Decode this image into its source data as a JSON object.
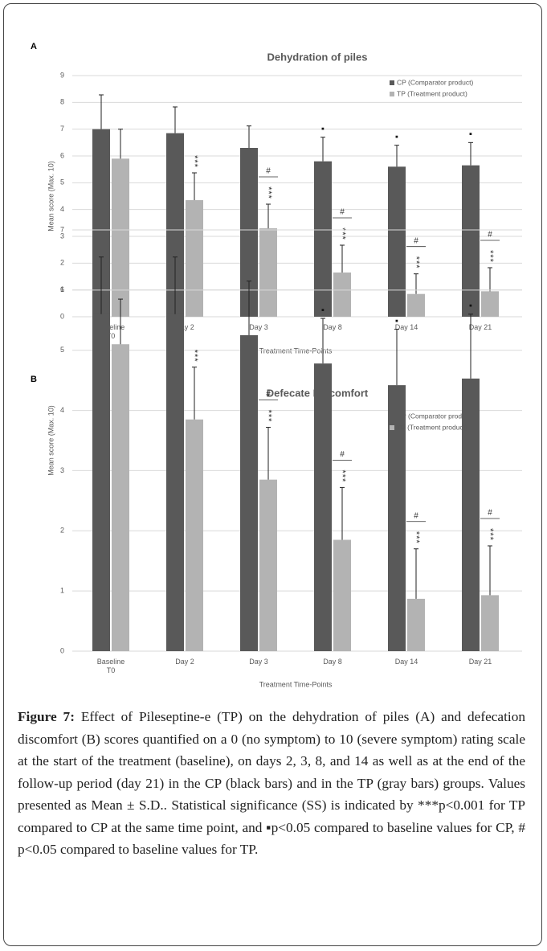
{
  "chart_data": [
    {
      "type": "bar",
      "panel": "A",
      "title": "Dehydration of piles",
      "categories": [
        "Baseline\nT0",
        "Day 2",
        "Day 3",
        "Day 8",
        "Day 14",
        "Day 21"
      ],
      "series": [
        {
          "name": "CP (Comparator product)",
          "color": "#595959",
          "values": [
            7.0,
            6.85,
            6.3,
            5.8,
            5.6,
            5.65
          ],
          "errors": [
            1.28,
            0.98,
            0.82,
            0.9,
            0.8,
            0.85
          ],
          "annotations": [
            null,
            null,
            null,
            "▪",
            "▪",
            "▪"
          ]
        },
        {
          "name": "TP (Treatment product)",
          "color": "#b3b3b3",
          "values": [
            5.9,
            4.35,
            3.3,
            1.65,
            0.85,
            0.95
          ],
          "errors": [
            1.1,
            1.02,
            0.9,
            1.02,
            0.75,
            0.88
          ],
          "annotations": [
            null,
            "***",
            "***",
            "***",
            "***",
            "***"
          ],
          "significance": [
            null,
            null,
            "#",
            "#",
            "#",
            "#"
          ]
        }
      ],
      "ylabel": "Mean score (Max. 10)",
      "xlabel": "Treatment Time-Points",
      "ylim": [
        0,
        9
      ],
      "yticks": [
        0,
        1,
        2,
        3,
        4,
        5,
        6,
        7,
        8,
        9
      ],
      "grid": true,
      "legend": "top-right"
    },
    {
      "type": "bar",
      "panel": "B",
      "title": "Defecate Discomfort",
      "categories": [
        "Baseline\nT0",
        "Day 2",
        "Day 3",
        "Day 8",
        "Day 14",
        "Day 21"
      ],
      "series": [
        {
          "name": "CP (Comparator product)",
          "color": "#595959",
          "values": [
            5.6,
            5.6,
            5.25,
            4.78,
            4.42,
            4.53
          ],
          "errors": [
            0.95,
            0.95,
            0.9,
            0.75,
            0.93,
            1.07
          ],
          "annotations": [
            null,
            null,
            null,
            "▪",
            "▪",
            "▪"
          ]
        },
        {
          "name": "TP (Treatment product)",
          "color": "#b3b3b3",
          "values": [
            5.1,
            3.85,
            2.85,
            1.85,
            0.87,
            0.93
          ],
          "errors": [
            0.75,
            0.87,
            0.87,
            0.87,
            0.83,
            0.82
          ],
          "annotations": [
            null,
            "***",
            "***",
            "***",
            "***",
            "***"
          ],
          "significance": [
            null,
            null,
            "#",
            "#",
            "#",
            "#"
          ]
        }
      ],
      "ylabel": "Mean score (Max. 10)",
      "xlabel": "Treatment Time-Points",
      "ylim": [
        0,
        7
      ],
      "yticks": [
        0,
        1,
        2,
        3,
        4,
        5,
        6,
        7
      ],
      "grid": true,
      "legend": "top-right"
    }
  ],
  "caption": {
    "label": "Figure 7:",
    "text": " Effect of Pileseptine-e (TP) on the dehydration of piles (A) and defecation discomfort (B) scores quantified on a 0 (no symptom) to 10 (severe symptom) rating scale at the start of the treatment (baseline), on days 2, 3, 8, and 14 as well as at the end of the follow-up period (day 21) in the CP (black bars) and in the TP (gray bars) groups. Values presented as Mean ± S.D.. Statistical significance (SS) is indicated by ***p<0.001 for TP compared to CP at the same time point, and ▪p<0.05 compared to baseline values for CP, # p<0.05 compared to baseline values for TP."
  }
}
